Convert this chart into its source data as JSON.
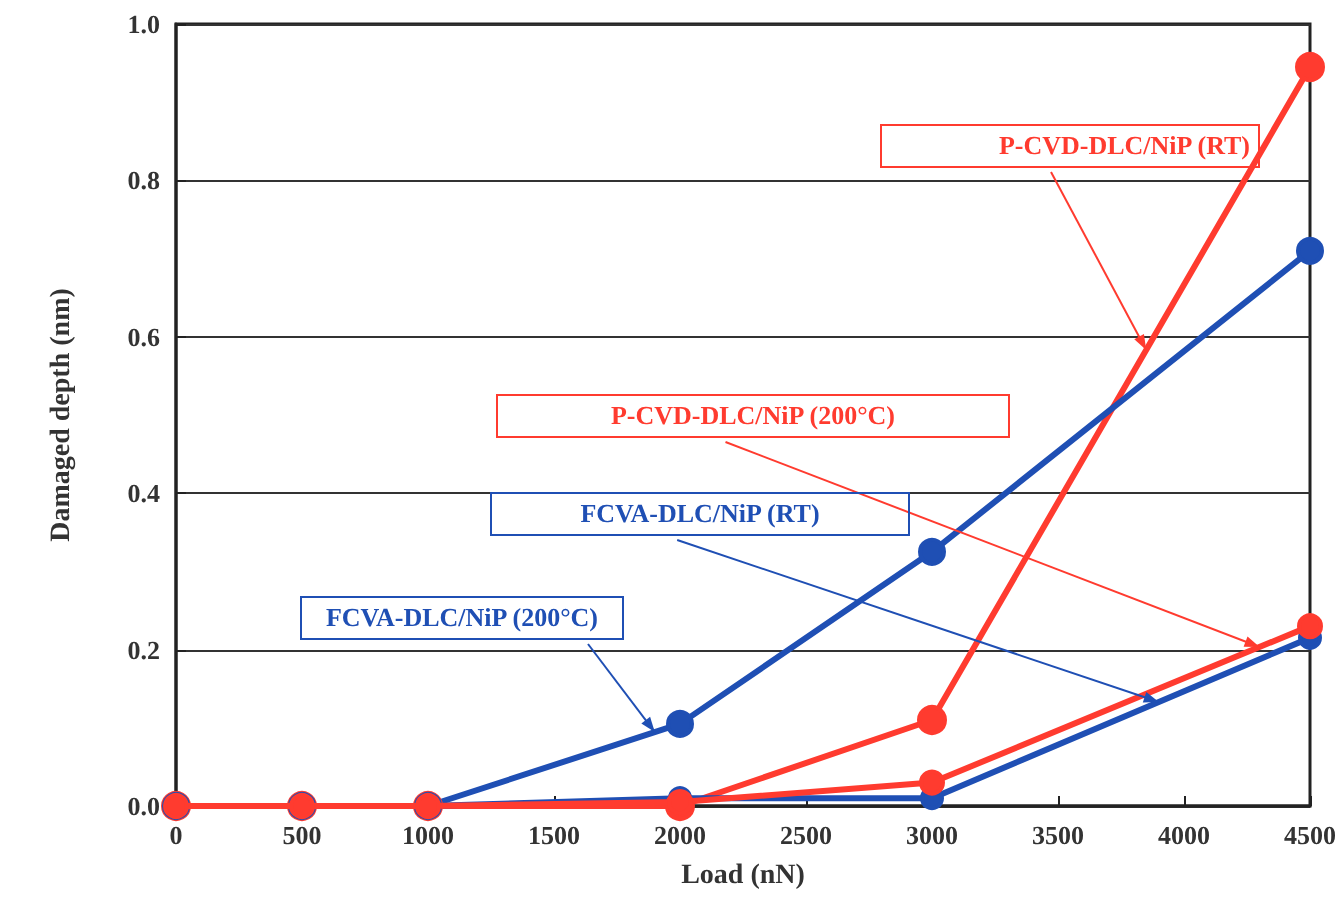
{
  "chart_data": {
    "type": "line",
    "xlabel": "Load (nN)",
    "ylabel": "Damaged depth (nm)",
    "x": [
      0,
      500,
      1000,
      2000,
      3000,
      4500
    ],
    "series": [
      {
        "name": "P-CVD-DLC/NiP (RT)",
        "color": "#ff3b2f",
        "values": [
          0,
          0,
          0,
          0,
          0.11,
          0.945
        ]
      },
      {
        "name": "FCVA-DLC/NiP (200°C)",
        "color": "#1f4fb4",
        "values": [
          0,
          0,
          0,
          0.105,
          0.325,
          0.71
        ]
      },
      {
        "name": "P-CVD-DLC/NiP (200°C)",
        "color": "#ff3b2f",
        "values": [
          0,
          0,
          0,
          0.005,
          0.03,
          0.23
        ]
      },
      {
        "name": "FCVA-DLC/NiP (RT)",
        "color": "#1f4fb4",
        "values": [
          0,
          0,
          0,
          0.01,
          0.01,
          0.215
        ]
      }
    ],
    "xlim": [
      0,
      4500
    ],
    "xticks": [
      0,
      500,
      1000,
      1500,
      2000,
      2500,
      3000,
      3500,
      4000,
      4500
    ],
    "ylim": [
      0,
      1.0
    ],
    "yticks": [
      {
        "value": 0,
        "label": "0.0"
      },
      {
        "value": 0.2,
        "label": "0.2"
      },
      {
        "value": 0.4,
        "label": "0.4"
      },
      {
        "value": 0.6,
        "label": "0.6"
      },
      {
        "value": 0.8,
        "label": "0.8"
      },
      {
        "value": 1.0,
        "label": "1.0"
      }
    ],
    "grid": "y",
    "legend": false,
    "marker": "circle",
    "line_style": "solid"
  }
}
